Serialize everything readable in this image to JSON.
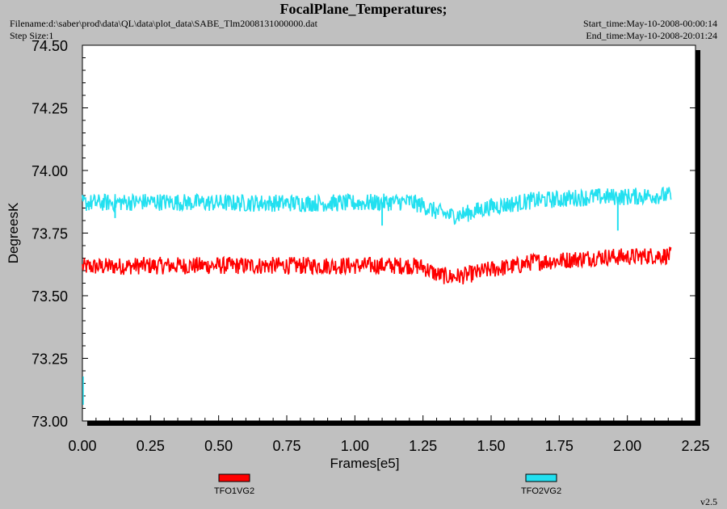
{
  "header": {
    "title": "FocalPlane_Temperatures;",
    "filename": "Filename:d:\\saber\\prod\\data\\QL\\data\\plot_data\\SABE_Tlm2008131000000.dat",
    "step_size": "Step Size:1",
    "start_time": "Start_time:May-10-2008-00:00:14",
    "end_time": "End_time:May-10-2008-20:01:24"
  },
  "footer": {
    "version": "v2.5"
  },
  "colors": {
    "background": "#c0c0c0",
    "plot_bg": "#ffffff",
    "TFO1VG2": "#ff0000",
    "TFO2VG2": "#22e0f0"
  },
  "chart_data": {
    "type": "line",
    "title": "FocalPlane_Temperatures;",
    "xlabel": "Frames[e5]",
    "ylabel": "DegreesK",
    "xlim": [
      0,
      2.25
    ],
    "ylim": [
      73.0,
      74.5
    ],
    "xticks": [
      "0.00",
      "0.25",
      "0.50",
      "0.75",
      "1.00",
      "1.25",
      "1.50",
      "1.75",
      "2.00",
      "2.25"
    ],
    "yticks": [
      "73.00",
      "73.25",
      "73.50",
      "73.75",
      "74.00",
      "74.25",
      "74.50"
    ],
    "grid": false,
    "legend_position": "bottom",
    "series": [
      {
        "name": "TFO1VG2",
        "color": "#ff0000",
        "noise_range": 0.07,
        "x": [
          0.0,
          0.25,
          0.5,
          0.75,
          1.0,
          1.2,
          1.25,
          1.3,
          1.35,
          1.4,
          1.5,
          1.6,
          1.65,
          1.75,
          1.8,
          1.9,
          2.0,
          2.1,
          2.16
        ],
        "y": [
          73.615,
          73.62,
          73.62,
          73.62,
          73.62,
          73.62,
          73.615,
          73.585,
          73.575,
          73.58,
          73.605,
          73.62,
          73.635,
          73.64,
          73.645,
          73.655,
          73.655,
          73.66,
          73.66
        ],
        "spikes": []
      },
      {
        "name": "TFO2VG2",
        "color": "#22e0f0",
        "noise_range": 0.07,
        "x": [
          0.0,
          0.25,
          0.5,
          0.75,
          1.0,
          1.2,
          1.25,
          1.3,
          1.35,
          1.4,
          1.5,
          1.6,
          1.65,
          1.75,
          1.8,
          1.9,
          2.0,
          2.1,
          2.16
        ],
        "y": [
          73.87,
          73.875,
          73.87,
          73.87,
          73.87,
          73.875,
          73.86,
          73.835,
          73.82,
          73.825,
          73.855,
          73.87,
          73.88,
          73.885,
          73.89,
          73.895,
          73.895,
          73.9,
          73.9
        ],
        "spikes": [
          [
            0.12,
            73.81
          ],
          [
            1.1,
            73.78
          ],
          [
            1.965,
            73.76
          ]
        ]
      }
    ]
  }
}
